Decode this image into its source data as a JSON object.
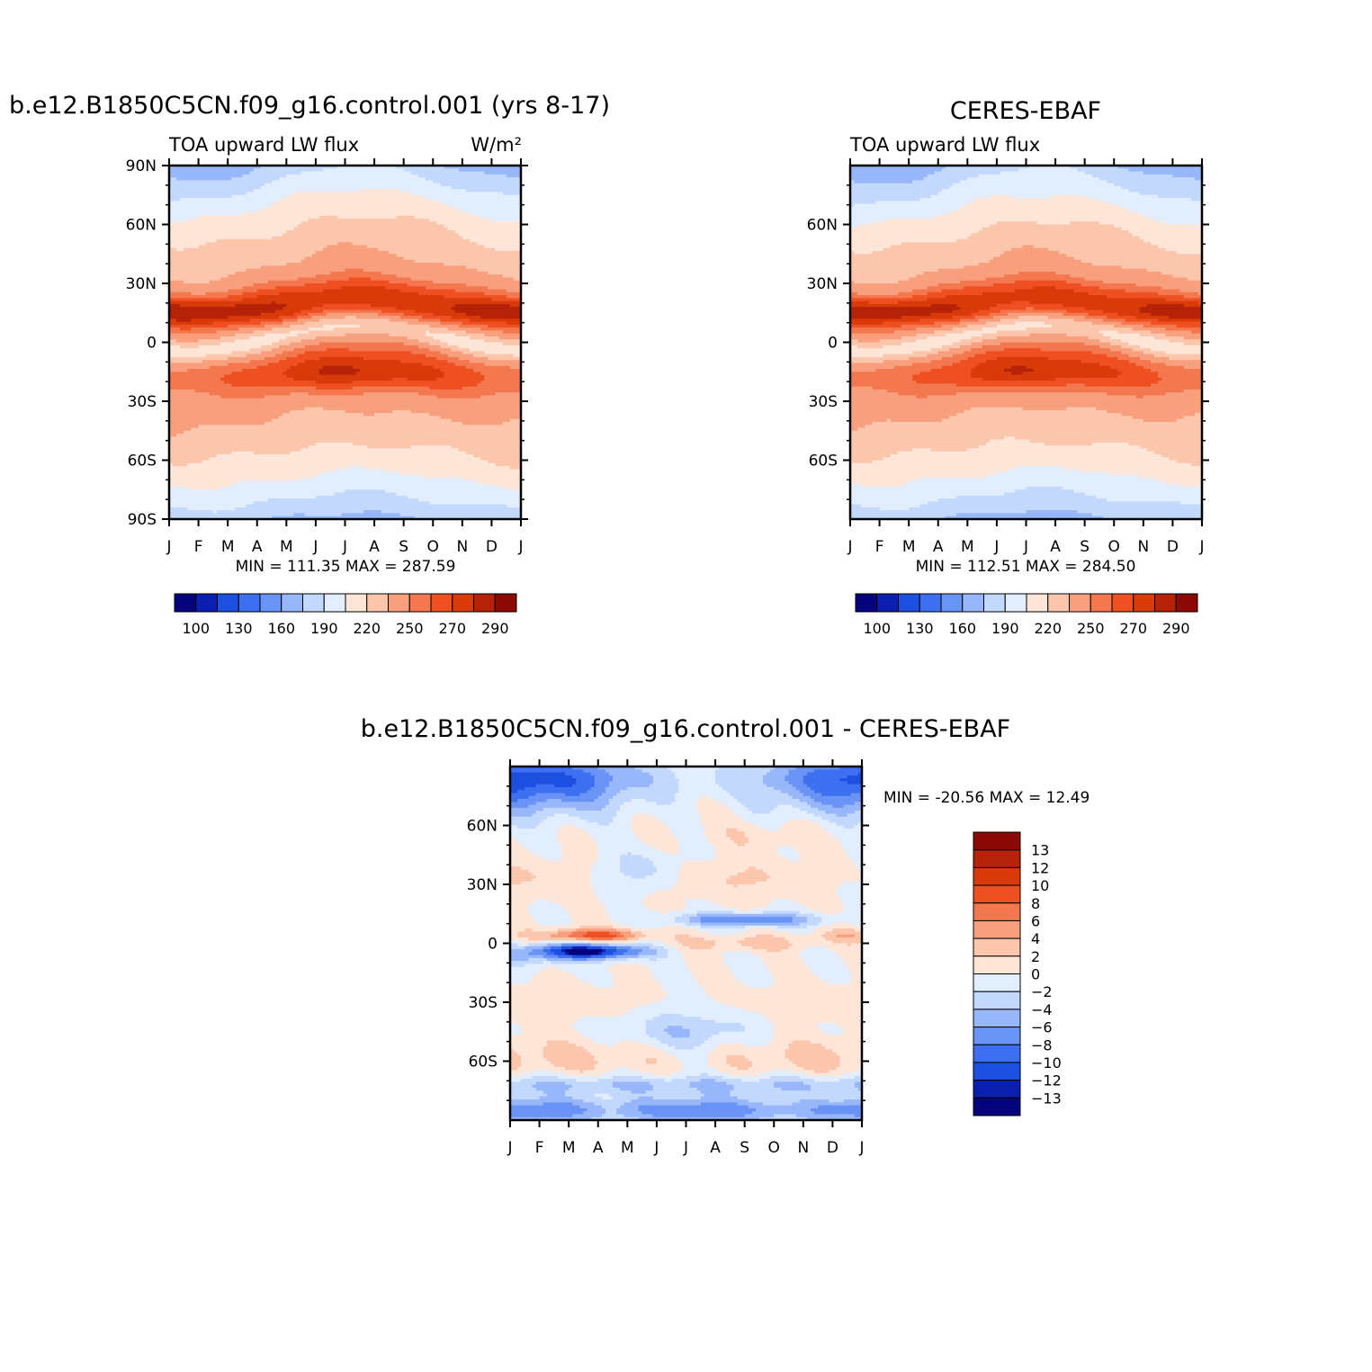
{
  "chart_data": [
    {
      "type": "heatmap",
      "title": "b.e12.B1850C5CN.f09_g16.control.001 (yrs 8-17)",
      "subtitle_left": "TOA upward LW flux",
      "units": "W/m²",
      "x_ticks": [
        "J",
        "F",
        "M",
        "A",
        "M",
        "J",
        "J",
        "A",
        "S",
        "O",
        "N",
        "D",
        "J"
      ],
      "y_ticks": [
        "90N",
        "60N",
        "30N",
        "0",
        "30S",
        "60S",
        "90S"
      ],
      "stats": "MIN =  111.35  MAX =  287.59",
      "min": 111.35,
      "max": 287.59,
      "colorbar_labels": [
        "100",
        "130",
        "160",
        "190",
        "220",
        "250",
        "270",
        "290"
      ],
      "colorbar_colors": [
        "#06047a",
        "#0a1fb0",
        "#1d4fe0",
        "#3d70f0",
        "#6a93f6",
        "#98b7fa",
        "#c3d8fd",
        "#e2eefe",
        "#fde6d8",
        "#fbc6ac",
        "#f8a07e",
        "#f4784f",
        "#ee5022",
        "#d83a0a",
        "#b52208",
        "#8c0a06"
      ]
    },
    {
      "type": "heatmap",
      "title": "CERES-EBAF",
      "subtitle_left": "TOA upward LW flux",
      "x_ticks": [
        "J",
        "F",
        "M",
        "A",
        "M",
        "J",
        "J",
        "A",
        "S",
        "O",
        "N",
        "D",
        "J"
      ],
      "y_ticks": [
        "60N",
        "30N",
        "0",
        "30S",
        "60S"
      ],
      "stats": "MIN =  112.51  MAX =  284.50",
      "min": 112.51,
      "max": 284.5,
      "colorbar_labels": [
        "100",
        "130",
        "160",
        "190",
        "220",
        "250",
        "270",
        "290"
      ]
    },
    {
      "type": "heatmap",
      "title": "b.e12.B1850C5CN.f09_g16.control.001  -  CERES-EBAF",
      "x_ticks": [
        "J",
        "F",
        "M",
        "A",
        "M",
        "J",
        "J",
        "A",
        "S",
        "O",
        "N",
        "D",
        "J"
      ],
      "y_ticks": [
        "60N",
        "30N",
        "0",
        "30S",
        "60S"
      ],
      "stats": "MIN = -20.56  MAX =   12.49",
      "min": -20.56,
      "max": 12.49,
      "colorbar_labels": [
        "13",
        "12",
        "10",
        "8",
        "6",
        "4",
        "2",
        "0",
        "-2",
        "-4",
        "-6",
        "-8",
        "-10",
        "-12",
        "-13"
      ],
      "colorbar_colors": [
        "#8c0a06",
        "#b52208",
        "#d83a0a",
        "#ee5022",
        "#f4784f",
        "#f8a07e",
        "#fbc6ac",
        "#fde6d8",
        "#e2eefe",
        "#c3d8fd",
        "#98b7fa",
        "#6a93f6",
        "#3d70f0",
        "#1d4fe0",
        "#0a1fb0",
        "#06047a"
      ]
    }
  ]
}
